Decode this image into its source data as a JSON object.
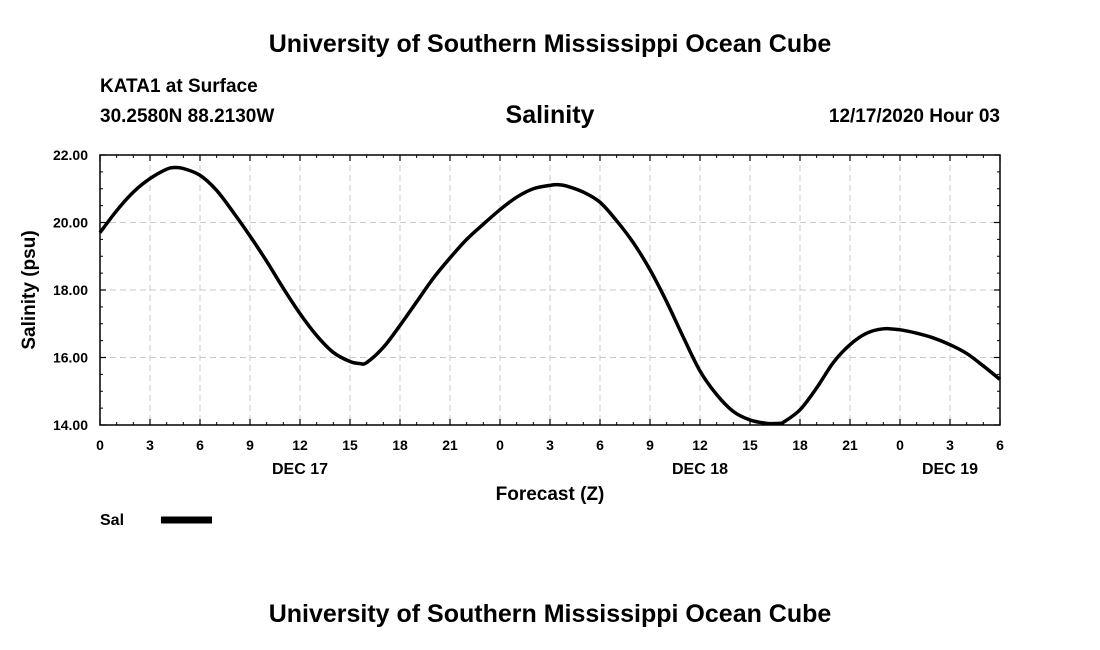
{
  "header": {
    "title": "University of Southern Mississippi Ocean Cube",
    "station": "KATA1 at Surface",
    "coordinates": "30.2580N 88.2130W",
    "variable": "Salinity",
    "datetime": "12/17/2020 Hour 03"
  },
  "footer": {
    "title": "University of Southern Mississippi Ocean Cube"
  },
  "chart_data": {
    "type": "line",
    "xlabel": "Forecast (Z)",
    "ylabel": "Salinity (psu)",
    "xlim": [
      0,
      54
    ],
    "ylim": [
      14,
      22
    ],
    "grid": true,
    "legend_position": "bottom-left",
    "x_ticks": [
      {
        "x": 0,
        "label": "0"
      },
      {
        "x": 3,
        "label": "3"
      },
      {
        "x": 6,
        "label": "6"
      },
      {
        "x": 9,
        "label": "9"
      },
      {
        "x": 12,
        "label": "12"
      },
      {
        "x": 15,
        "label": "15"
      },
      {
        "x": 18,
        "label": "18"
      },
      {
        "x": 21,
        "label": "21"
      },
      {
        "x": 24,
        "label": "0"
      },
      {
        "x": 27,
        "label": "3"
      },
      {
        "x": 30,
        "label": "6"
      },
      {
        "x": 33,
        "label": "9"
      },
      {
        "x": 36,
        "label": "12"
      },
      {
        "x": 39,
        "label": "15"
      },
      {
        "x": 42,
        "label": "18"
      },
      {
        "x": 45,
        "label": "21"
      },
      {
        "x": 48,
        "label": "0"
      },
      {
        "x": 51,
        "label": "3"
      },
      {
        "x": 54,
        "label": "6"
      }
    ],
    "date_labels": [
      {
        "x": 12,
        "label": "DEC 17"
      },
      {
        "x": 36,
        "label": "DEC 18"
      },
      {
        "x": 51,
        "label": "DEC 19"
      }
    ],
    "y_ticks": [
      {
        "y": 14,
        "label": "14.00"
      },
      {
        "y": 16,
        "label": "16.00"
      },
      {
        "y": 18,
        "label": "18.00"
      },
      {
        "y": 20,
        "label": "20.00"
      },
      {
        "y": 22,
        "label": "22.00"
      }
    ],
    "series": [
      {
        "name": "Sal",
        "color": "#000000",
        "x": [
          0,
          1,
          2,
          3,
          4,
          4.5,
          5,
          6,
          7,
          8,
          9,
          10,
          11,
          12,
          13,
          14,
          15,
          15.6,
          16,
          17,
          18,
          19,
          20,
          21,
          22,
          23,
          24,
          25,
          26,
          27,
          27.5,
          28,
          29,
          30,
          31,
          32,
          33,
          34,
          35,
          36,
          37,
          38,
          39,
          40,
          40.8,
          41,
          42,
          43,
          44,
          45,
          46,
          47,
          48,
          49,
          50,
          51,
          52,
          53,
          54
        ],
        "values": [
          19.7,
          20.35,
          20.9,
          21.3,
          21.58,
          21.63,
          21.6,
          21.4,
          20.95,
          20.3,
          19.6,
          18.85,
          18.05,
          17.3,
          16.65,
          16.15,
          15.88,
          15.82,
          15.85,
          16.3,
          16.95,
          17.65,
          18.35,
          18.95,
          19.5,
          19.95,
          20.38,
          20.75,
          21.0,
          21.1,
          21.12,
          21.08,
          20.9,
          20.6,
          20.05,
          19.4,
          18.6,
          17.65,
          16.6,
          15.6,
          14.9,
          14.4,
          14.15,
          14.05,
          14.05,
          14.08,
          14.45,
          15.1,
          15.85,
          16.38,
          16.72,
          16.85,
          16.82,
          16.72,
          16.58,
          16.38,
          16.12,
          15.75,
          15.35
        ]
      }
    ]
  }
}
